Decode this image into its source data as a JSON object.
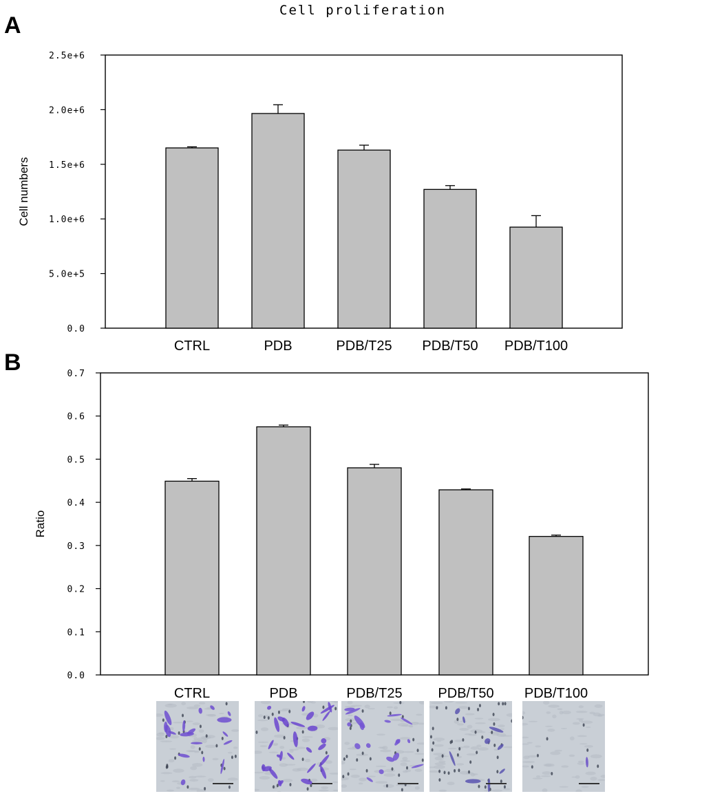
{
  "chart_data": [
    {
      "panel": "A",
      "type": "bar",
      "title": "Cell proliferation",
      "xlabel": "",
      "ylabel": "Cell numbers",
      "categories": [
        "CTRL",
        "PDB",
        "PDB/T25",
        "PDB/T50",
        "PDB/T100"
      ],
      "values": [
        1650000,
        1965000,
        1630000,
        1270000,
        925000
      ],
      "errors": [
        10000,
        80000,
        45000,
        35000,
        105000
      ],
      "ylim": [
        0,
        2500000
      ],
      "ytick_values": [
        0,
        500000,
        1000000,
        1500000,
        2000000,
        2500000
      ],
      "ytick_labels": [
        "0.0",
        "5.0e+5",
        "1.0e+6",
        "1.5e+6",
        "2.0e+6",
        "2.5e+6"
      ],
      "bar_color": "#c0c0c0",
      "grid": false
    },
    {
      "panel": "B",
      "type": "bar",
      "title": "",
      "xlabel": "",
      "ylabel": "Ratio",
      "categories": [
        "CTRL",
        "PDB",
        "PDB/T25",
        "PDB/T50",
        "PDB/T100"
      ],
      "values": [
        0.449,
        0.575,
        0.48,
        0.429,
        0.321
      ],
      "errors": [
        0.006,
        0.004,
        0.008,
        0.002,
        0.003
      ],
      "ylim": [
        0,
        0.7
      ],
      "ytick_values": [
        0,
        0.1,
        0.2,
        0.3,
        0.4,
        0.5,
        0.6,
        0.7
      ],
      "ytick_labels": [
        "0.0",
        "0.1",
        "0.2",
        "0.3",
        "0.4",
        "0.5",
        "0.6",
        "0.7"
      ],
      "bar_color": "#c0c0c0",
      "grid": false
    }
  ],
  "images": [
    {
      "label": "CTRL",
      "stain_density": "moderate",
      "cell_color": "#6f4fd0"
    },
    {
      "label": "PDB",
      "stain_density": "high",
      "cell_color": "#6b46cf"
    },
    {
      "label": "PDB/T25",
      "stain_density": "moderate",
      "cell_color": "#7355d4"
    },
    {
      "label": "PDB/T50",
      "stain_density": "low",
      "cell_color": "#5a55b0"
    },
    {
      "label": "PDB/T100",
      "stain_density": "very low",
      "cell_color": "#6a4fc8"
    }
  ],
  "colors": {
    "axis": "#000000",
    "bar": "#c0c0c0",
    "background": "#ffffff",
    "micro_bg": "#c9cfd6"
  }
}
